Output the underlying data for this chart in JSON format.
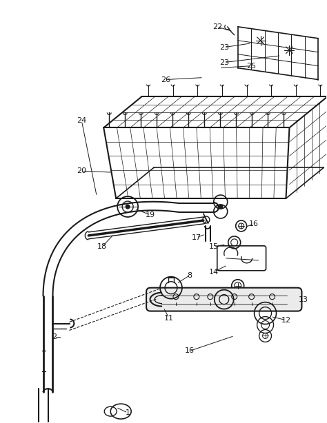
{
  "bg_color": "#ffffff",
  "line_color": "#1a1a1a",
  "label_color": "#1a1a1a",
  "figsize": [
    4.74,
    6.14
  ],
  "dpi": 100
}
